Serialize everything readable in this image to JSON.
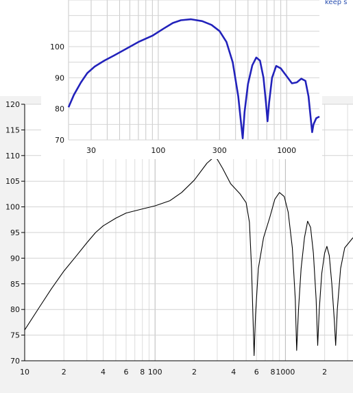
{
  "background_fragments": [
    {
      "text": "keep s",
      "left": 0
    },
    {
      "text": "",
      "left": 0
    }
  ],
  "chart_data": [
    {
      "type": "line",
      "title": "",
      "xlabel": "",
      "ylabel": "",
      "xscale": "log",
      "xlim": [
        10,
        3300
      ],
      "ylim": [
        70,
        120
      ],
      "grid": true,
      "color": "#000000",
      "y_ticks": [
        70,
        75,
        80,
        85,
        90,
        95,
        100,
        105,
        110,
        115,
        120
      ],
      "x_tick_labels": [
        {
          "value": 10,
          "label": "10"
        },
        {
          "value": 20,
          "label": "2"
        },
        {
          "value": 40,
          "label": "4"
        },
        {
          "value": 60,
          "label": "6"
        },
        {
          "value": 80,
          "label": "8"
        },
        {
          "value": 100,
          "label": "100"
        },
        {
          "value": 200,
          "label": "2"
        },
        {
          "value": 400,
          "label": "4"
        },
        {
          "value": 600,
          "label": "6"
        },
        {
          "value": 800,
          "label": "8"
        },
        {
          "value": 1000,
          "label": "1000"
        },
        {
          "value": 2000,
          "label": "2"
        }
      ],
      "series": [
        {
          "points": [
            [
              10,
              76
            ],
            [
              13,
              80.5
            ],
            [
              16,
              84
            ],
            [
              20,
              87.5
            ],
            [
              25,
              90.5
            ],
            [
              30,
              93
            ],
            [
              35,
              95
            ],
            [
              40,
              96.3
            ],
            [
              50,
              97.8
            ],
            [
              60,
              98.8
            ],
            [
              80,
              99.6
            ],
            [
              100,
              100.2
            ],
            [
              130,
              101.2
            ],
            [
              160,
              102.8
            ],
            [
              200,
              105.2
            ],
            [
              250,
              108.5
            ],
            [
              280,
              109.6
            ],
            [
              300,
              109.3
            ],
            [
              330,
              107.5
            ],
            [
              380,
              104.5
            ],
            [
              450,
              102.5
            ],
            [
              500,
              100.8
            ],
            [
              530,
              97
            ],
            [
              550,
              88
            ],
            [
              565,
              78
            ],
            [
              575,
              71
            ],
            [
              590,
              79
            ],
            [
              620,
              88
            ],
            [
              680,
              94
            ],
            [
              760,
              98
            ],
            [
              830,
              101.5
            ],
            [
              900,
              102.8
            ],
            [
              980,
              102
            ],
            [
              1050,
              99
            ],
            [
              1130,
              92
            ],
            [
              1190,
              82
            ],
            [
              1220,
              72
            ],
            [
              1260,
              80
            ],
            [
              1320,
              88
            ],
            [
              1400,
              94
            ],
            [
              1480,
              97.2
            ],
            [
              1560,
              96
            ],
            [
              1640,
              91
            ],
            [
              1720,
              82
            ],
            [
              1770,
              73
            ],
            [
              1820,
              80
            ],
            [
              1900,
              87
            ],
            [
              2000,
              91
            ],
            [
              2080,
              92.3
            ],
            [
              2170,
              90.5
            ],
            [
              2270,
              85
            ],
            [
              2370,
              78
            ],
            [
              2430,
              73
            ],
            [
              2500,
              80
            ],
            [
              2650,
              88
            ],
            [
              2850,
              92
            ],
            [
              3300,
              94
            ]
          ]
        }
      ]
    },
    {
      "type": "line",
      "title": "",
      "xlabel": "",
      "ylabel": "",
      "xscale": "log",
      "xlim": [
        20,
        1800
      ],
      "ylim": [
        70,
        115
      ],
      "grid": true,
      "color": "#2222bb",
      "y_ticks": [
        {
          "value": 70,
          "label": "70"
        },
        {
          "value": 80,
          "label": "80"
        },
        {
          "value": 90,
          "label": "90"
        },
        {
          "value": 100,
          "label": "100"
        }
      ],
      "x_ticks": [
        {
          "value": 30,
          "label": "30"
        },
        {
          "value": 100,
          "label": "100"
        },
        {
          "value": 300,
          "label": "300"
        },
        {
          "value": 1000,
          "label": "1000"
        }
      ],
      "series": [
        {
          "points": [
            [
              20,
              80.5
            ],
            [
              22,
              84.5
            ],
            [
              25,
              88.5
            ],
            [
              28,
              91.5
            ],
            [
              32,
              93.6
            ],
            [
              38,
              95.5
            ],
            [
              45,
              97.1
            ],
            [
              55,
              99.1
            ],
            [
              70,
              101.5
            ],
            [
              90,
              103.5
            ],
            [
              110,
              105.8
            ],
            [
              130,
              107.6
            ],
            [
              150,
              108.5
            ],
            [
              180,
              108.8
            ],
            [
              220,
              108.2
            ],
            [
              260,
              107
            ],
            [
              300,
              105
            ],
            [
              340,
              101.5
            ],
            [
              380,
              95
            ],
            [
              420,
              84
            ],
            [
              440,
              76
            ],
            [
              455,
              70.5
            ],
            [
              470,
              79
            ],
            [
              500,
              88
            ],
            [
              540,
              94
            ],
            [
              580,
              96.5
            ],
            [
              620,
              95.5
            ],
            [
              660,
              90
            ],
            [
              690,
              82
            ],
            [
              710,
              76
            ],
            [
              730,
              82
            ],
            [
              770,
              90
            ],
            [
              830,
              93.8
            ],
            [
              900,
              93
            ],
            [
              1000,
              90.5
            ],
            [
              1100,
              88.2
            ],
            [
              1200,
              88.5
            ],
            [
              1300,
              89.7
            ],
            [
              1400,
              89
            ],
            [
              1480,
              84
            ],
            [
              1540,
              77
            ],
            [
              1580,
              72.5
            ],
            [
              1620,
              75
            ],
            [
              1700,
              77
            ],
            [
              1800,
              77.5
            ]
          ]
        }
      ]
    }
  ]
}
